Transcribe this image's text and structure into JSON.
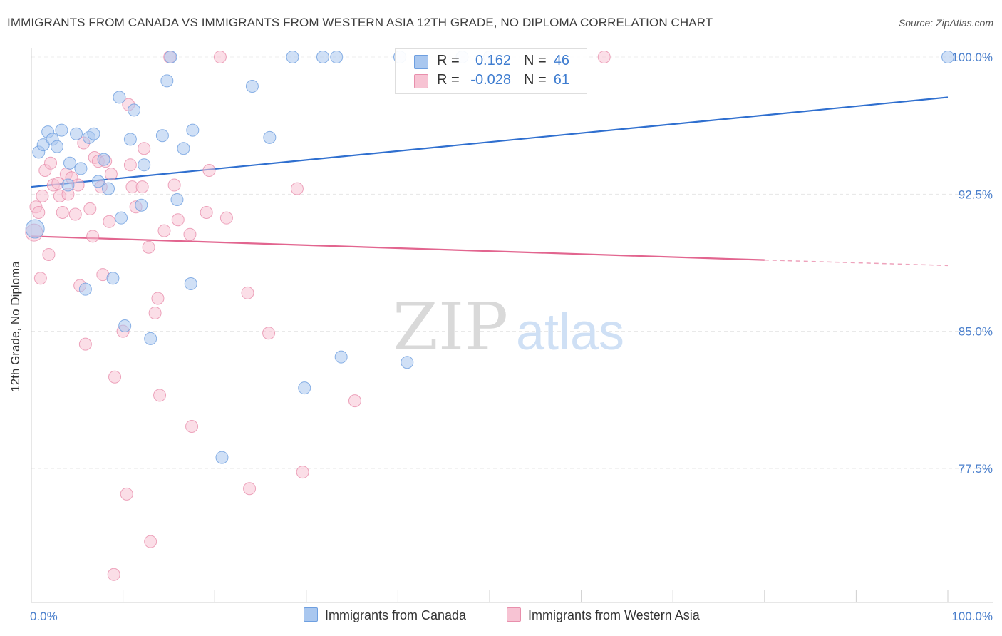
{
  "title": "IMMIGRANTS FROM CANADA VS IMMIGRANTS FROM WESTERN ASIA 12TH GRADE, NO DIPLOMA CORRELATION CHART",
  "source": "Source: ZipAtlas.com",
  "watermark": {
    "zip": "ZIP",
    "atlas": "atlas"
  },
  "stats": {
    "rows": [
      {
        "r_label": "R =",
        "r_value": "0.162",
        "n_label": "N =",
        "n_value": "46",
        "color": "#a9c7ef",
        "border": "#6e9fe0"
      },
      {
        "r_label": "R =",
        "r_value": "-0.028",
        "n_label": "N =",
        "n_value": "61",
        "color": "#f7c3d3",
        "border": "#e88fac"
      }
    ]
  },
  "chart_data": {
    "type": "scatter",
    "title": "IMMIGRANTS FROM CANADA VS IMMIGRANTS FROM WESTERN ASIA 12TH GRADE, NO DIPLOMA CORRELATION CHART",
    "xlabel": "",
    "ylabel": "12th Grade, No Diploma",
    "xlim": [
      0,
      100
    ],
    "ylim": [
      71.5,
      101.0
    ],
    "x_tick_labels": [
      "0.0%",
      "100.0%"
    ],
    "y_ticks": [
      77.5,
      85.0,
      92.5,
      100.0
    ],
    "y_tick_labels": [
      "77.5%",
      "85.0%",
      "92.5%",
      "100.0%"
    ],
    "grid": true,
    "legend_position": "bottom-center",
    "series": [
      {
        "name": "Immigrants from Canada",
        "color": "#6e9fe0",
        "fill": "#a9c7ef",
        "trend": {
          "x": [
            0,
            100
          ],
          "y": [
            92.9,
            97.8
          ]
        },
        "points": [
          [
            0.4,
            90.6
          ],
          [
            0.8,
            94.8
          ],
          [
            1.3,
            95.2
          ],
          [
            1.8,
            95.9
          ],
          [
            2.3,
            95.5
          ],
          [
            2.8,
            95.1
          ],
          [
            3.3,
            96.0
          ],
          [
            4.0,
            93.0
          ],
          [
            4.2,
            94.2
          ],
          [
            4.9,
            95.8
          ],
          [
            5.4,
            93.9
          ],
          [
            5.9,
            87.3
          ],
          [
            6.3,
            95.6
          ],
          [
            6.8,
            95.8
          ],
          [
            7.3,
            93.2
          ],
          [
            7.9,
            94.4
          ],
          [
            8.4,
            92.8
          ],
          [
            8.9,
            87.9
          ],
          [
            9.6,
            97.8
          ],
          [
            9.8,
            91.2
          ],
          [
            10.2,
            85.3
          ],
          [
            10.8,
            95.5
          ],
          [
            11.2,
            97.1
          ],
          [
            12.0,
            91.9
          ],
          [
            12.3,
            94.1
          ],
          [
            13.0,
            84.6
          ],
          [
            14.3,
            95.7
          ],
          [
            14.8,
            98.7
          ],
          [
            15.2,
            100.0
          ],
          [
            15.9,
            92.2
          ],
          [
            16.6,
            95.0
          ],
          [
            17.4,
            87.6
          ],
          [
            17.6,
            96.0
          ],
          [
            20.8,
            78.1
          ],
          [
            24.1,
            98.4
          ],
          [
            26.0,
            95.6
          ],
          [
            28.5,
            100.0
          ],
          [
            31.8,
            100.0
          ],
          [
            33.3,
            100.0
          ],
          [
            33.8,
            83.6
          ],
          [
            29.8,
            81.9
          ],
          [
            41.0,
            83.3
          ],
          [
            40.2,
            100.0
          ],
          [
            47.0,
            100.0
          ],
          [
            50.0,
            100.0
          ],
          [
            100.0,
            100.0
          ]
        ]
      },
      {
        "name": "Immigrants from Western Asia",
        "color": "#e88fac",
        "fill": "#f7c3d3",
        "trend": {
          "x": [
            0,
            80
          ],
          "y": [
            90.2,
            88.9
          ]
        },
        "trend_dashed": {
          "x": [
            80,
            100
          ],
          "y": [
            88.9,
            88.6
          ]
        },
        "points": [
          [
            0.3,
            90.4
          ],
          [
            0.5,
            91.8
          ],
          [
            0.8,
            91.5
          ],
          [
            1.2,
            92.4
          ],
          [
            1.5,
            93.8
          ],
          [
            1.9,
            89.2
          ],
          [
            2.1,
            94.2
          ],
          [
            2.4,
            93.0
          ],
          [
            2.9,
            93.1
          ],
          [
            3.1,
            92.4
          ],
          [
            3.4,
            91.5
          ],
          [
            3.8,
            93.6
          ],
          [
            4.0,
            92.5
          ],
          [
            4.4,
            93.4
          ],
          [
            4.8,
            91.4
          ],
          [
            5.1,
            93.0
          ],
          [
            5.3,
            87.5
          ],
          [
            5.7,
            95.3
          ],
          [
            5.9,
            84.3
          ],
          [
            6.4,
            91.7
          ],
          [
            6.7,
            90.2
          ],
          [
            6.9,
            94.5
          ],
          [
            7.3,
            94.3
          ],
          [
            7.6,
            92.9
          ],
          [
            7.8,
            88.1
          ],
          [
            8.1,
            94.3
          ],
          [
            8.5,
            91.0
          ],
          [
            8.7,
            93.6
          ],
          [
            9.0,
            71.7
          ],
          [
            9.1,
            82.5
          ],
          [
            10.0,
            85.0
          ],
          [
            10.4,
            76.1
          ],
          [
            10.6,
            97.4
          ],
          [
            10.8,
            94.1
          ],
          [
            11.0,
            92.9
          ],
          [
            11.4,
            91.8
          ],
          [
            12.1,
            92.9
          ],
          [
            12.3,
            95.0
          ],
          [
            12.8,
            89.6
          ],
          [
            13.0,
            73.5
          ],
          [
            13.5,
            86.0
          ],
          [
            13.8,
            86.8
          ],
          [
            14.0,
            81.5
          ],
          [
            14.5,
            90.5
          ],
          [
            15.1,
            100.0
          ],
          [
            15.6,
            93.0
          ],
          [
            16.0,
            91.1
          ],
          [
            17.3,
            90.3
          ],
          [
            17.5,
            79.8
          ],
          [
            19.1,
            91.5
          ],
          [
            19.4,
            93.8
          ],
          [
            20.6,
            100.0
          ],
          [
            21.3,
            91.2
          ],
          [
            23.6,
            87.1
          ],
          [
            23.8,
            76.4
          ],
          [
            25.9,
            84.9
          ],
          [
            29.0,
            92.8
          ],
          [
            29.6,
            77.3
          ],
          [
            35.3,
            81.2
          ],
          [
            62.5,
            100.0
          ],
          [
            1.0,
            87.9
          ]
        ]
      }
    ]
  }
}
